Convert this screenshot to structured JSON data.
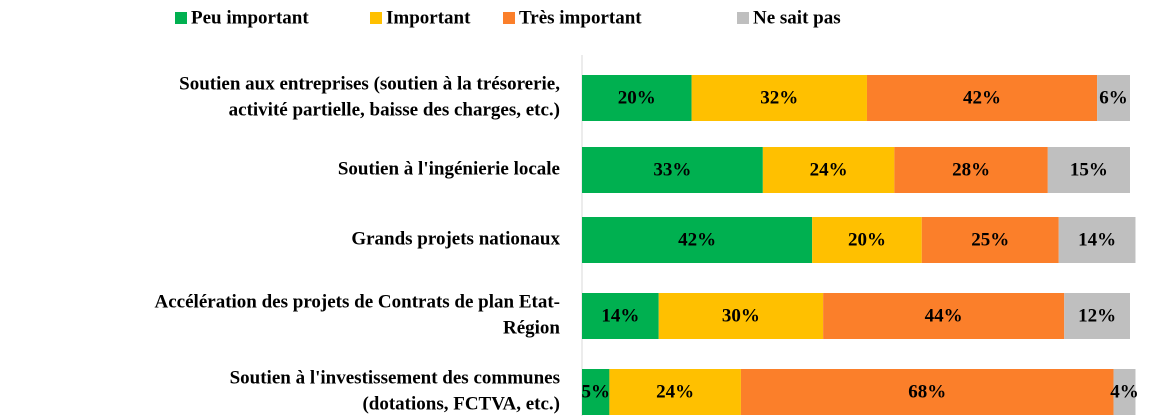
{
  "chart_data": {
    "type": "stacked-bar-horizontal",
    "categories": [
      [
        "Soutien aux entreprises (soutien à la trésorerie,",
        "activité partielle, baisse des charges, etc.)"
      ],
      [
        "Soutien à l'ingénierie locale"
      ],
      [
        "Grands projets nationaux"
      ],
      [
        "Accélération des projets de Contrats de plan Etat-",
        "Région"
      ],
      [
        "Soutien à l'investissement des communes",
        "(dotations, FCTVA, etc.)"
      ]
    ],
    "series": [
      {
        "name": "Peu important",
        "color": "#00b050",
        "values": [
          20,
          33,
          42,
          14,
          5
        ],
        "value_labels": [
          "20%",
          "33%",
          "42%",
          "14%",
          "5%"
        ]
      },
      {
        "name": "Important",
        "color": "#ffc000",
        "values": [
          32,
          24,
          20,
          30,
          24
        ],
        "value_labels": [
          "32%",
          "24%",
          "20%",
          "30%",
          "24%"
        ]
      },
      {
        "name": "Très important",
        "color": "#fb7f2a",
        "values": [
          42,
          28,
          25,
          44,
          68
        ],
        "value_labels": [
          "42%",
          "28%",
          "25%",
          "44%",
          "68%"
        ]
      },
      {
        "name": "Ne sait pas",
        "color": "#bfbfbf",
        "values": [
          6,
          15,
          14,
          12,
          4
        ],
        "value_labels": [
          "6%",
          "15%",
          "14%",
          "12%",
          "4%"
        ]
      }
    ],
    "xlim": [
      0,
      100
    ],
    "legend": "top"
  }
}
